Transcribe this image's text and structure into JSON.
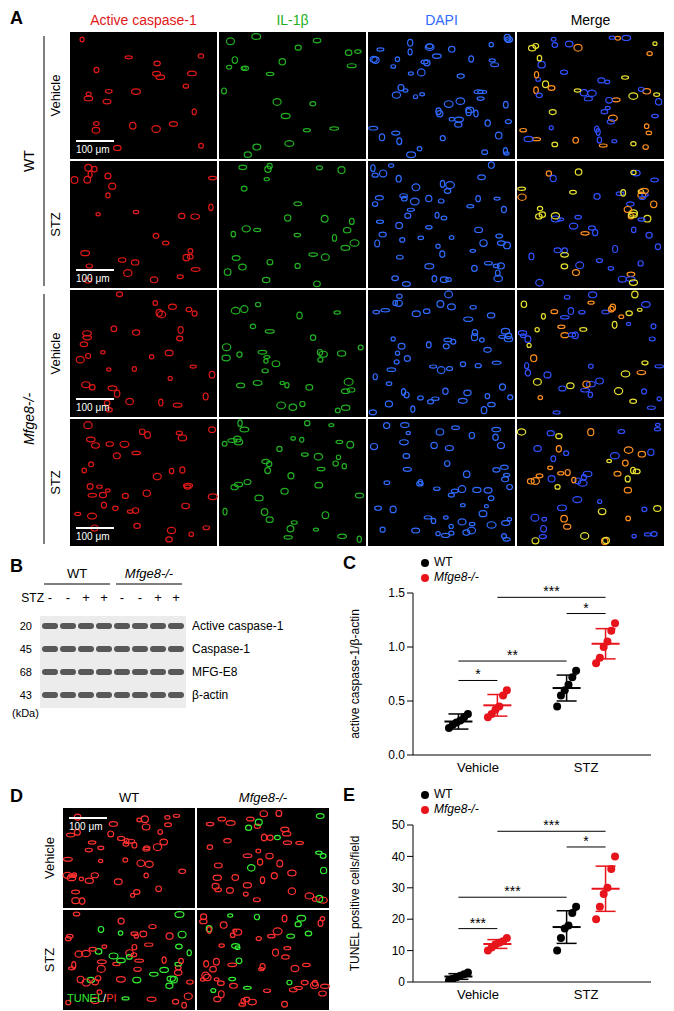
{
  "panels": {
    "A": {
      "letter": "A",
      "columns": [
        {
          "label": "Active caspase-1",
          "color": "#e01818"
        },
        {
          "label": "IL-1β",
          "color": "#22b022"
        },
        {
          "label": "DAPI",
          "color": "#2f6bff"
        },
        {
          "label": "Merge",
          "color": "#000000"
        }
      ],
      "groups": [
        {
          "label": "WT",
          "rows": [
            "Vehicle",
            "STZ"
          ]
        },
        {
          "label": "Mfge8-/-",
          "rows": [
            "Vehicle",
            "STZ"
          ]
        }
      ],
      "scale_bar": "100 μm"
    },
    "B": {
      "letter": "B",
      "groups": [
        "WT",
        "Mfge8-/-"
      ],
      "treatment_label": "STZ",
      "lanes": [
        "-",
        "-",
        "+",
        "+",
        "-",
        "-",
        "+",
        "+"
      ],
      "bands": [
        {
          "label": "Active caspase-1",
          "kda": 20
        },
        {
          "label": "Caspase-1",
          "kda": 45
        },
        {
          "label": "MFG-E8",
          "kda": 68
        },
        {
          "label": "β-actin",
          "kda": 43
        }
      ],
      "unit_label": "(kDa)"
    },
    "D": {
      "letter": "D",
      "columns": [
        "WT",
        "Mfge8-/-"
      ],
      "rows": [
        "Vehicle",
        "STZ"
      ],
      "scale_bar": "100 μm",
      "caption": [
        {
          "text": "TUNEL",
          "color": "#33ee33"
        },
        {
          "text": "/",
          "color": "#ffffff"
        },
        {
          "text": "PI",
          "color": "#ff3030"
        }
      ]
    }
  },
  "chart_data": [
    {
      "type": "scatter",
      "panel": "C",
      "y_label": "active caspase-1/β-actin",
      "categories": [
        "Vehicle",
        "STZ"
      ],
      "series": [
        {
          "name": "WT",
          "color": "#000000",
          "values": [
            [
              0.25,
              0.28,
              0.3,
              0.32,
              0.35,
              0.38
            ],
            [
              0.45,
              0.55,
              0.6,
              0.65,
              0.72,
              0.78
            ]
          ],
          "mean": [
            0.31,
            0.62
          ],
          "sd": [
            0.07,
            0.12
          ]
        },
        {
          "name": "Mfge8-/-",
          "color": "#e8141c",
          "values": [
            [
              0.35,
              0.38,
              0.42,
              0.45,
              0.55,
              0.6
            ],
            [
              0.85,
              0.9,
              1.0,
              1.05,
              1.15,
              1.22
            ]
          ],
          "mean": [
            0.46,
            1.03
          ],
          "sd": [
            0.1,
            0.14
          ]
        }
      ],
      "ylim": [
        0,
        1.5
      ],
      "yticks": [
        {
          "value": 0,
          "label": "0.0"
        },
        {
          "value": 0.5,
          "label": "0.5"
        },
        {
          "value": 1,
          "label": "1.0"
        },
        {
          "value": 1.5,
          "label": "1.5"
        }
      ],
      "legend": "upper left",
      "annotations": [
        {
          "from": {
            "category": 0,
            "series": 0
          },
          "to": {
            "category": 0,
            "series": 1
          },
          "label": "*"
        },
        {
          "from": {
            "category": 0,
            "series": 0
          },
          "to": {
            "category": 1,
            "series": 0
          },
          "label": "**"
        },
        {
          "from": {
            "category": 0,
            "series": 1
          },
          "to": {
            "category": 1,
            "series": 1
          },
          "label": "***"
        },
        {
          "from": {
            "category": 1,
            "series": 0
          },
          "to": {
            "category": 1,
            "series": 1
          },
          "label": "*"
        }
      ]
    },
    {
      "type": "scatter",
      "panel": "E",
      "y_label": "TUNEL positive cells/field",
      "categories": [
        "Vehicle",
        "STZ"
      ],
      "series": [
        {
          "name": "WT",
          "color": "#000000",
          "values": [
            [
              0.5,
              1,
              1.5,
              2,
              2.5,
              3
            ],
            [
              10,
              14,
              17,
              18,
              22,
              24
            ]
          ],
          "mean": [
            1.75,
            17.5
          ],
          "sd": [
            0.9,
            5.2
          ]
        },
        {
          "name": "Mfge8-/-",
          "color": "#e8141c",
          "values": [
            [
              10,
              11,
              12,
              12.5,
              13,
              14
            ],
            [
              20,
              24,
              28,
              30,
              36,
              40
            ]
          ],
          "mean": [
            12.1,
            29.7
          ],
          "sd": [
            1.4,
            7.2
          ]
        }
      ],
      "ylim": [
        0,
        50
      ],
      "yticks": [
        0,
        10,
        20,
        30,
        40,
        50
      ],
      "legend": "upper left",
      "annotations": [
        {
          "from": {
            "category": 0,
            "series": 0
          },
          "to": {
            "category": 0,
            "series": 1
          },
          "label": "***"
        },
        {
          "from": {
            "category": 0,
            "series": 0
          },
          "to": {
            "category": 1,
            "series": 0
          },
          "label": "***"
        },
        {
          "from": {
            "category": 0,
            "series": 1
          },
          "to": {
            "category": 1,
            "series": 1
          },
          "label": "***"
        },
        {
          "from": {
            "category": 1,
            "series": 0
          },
          "to": {
            "category": 1,
            "series": 1
          },
          "label": "*"
        }
      ]
    }
  ]
}
